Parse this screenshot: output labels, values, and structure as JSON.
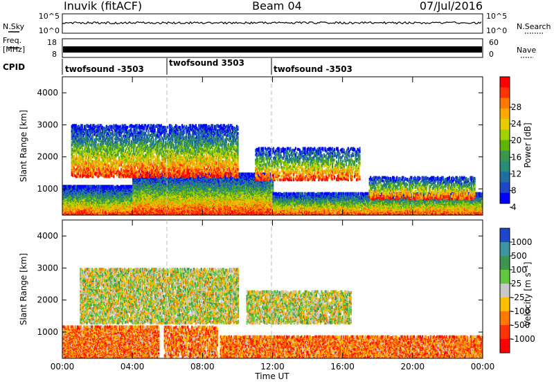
{
  "header": {
    "station": "Inuvik (fitACF)",
    "beam": "Beam 04",
    "date": "07/Jul/2016"
  },
  "strips": {
    "nsky_label": "N.Sky",
    "nsky_ticks": [
      "10^5",
      "10^0"
    ],
    "nsearch_label": "N.Search",
    "nsearch_ticks": [
      "10^5",
      "10^0"
    ],
    "freq_label_line1": "Freq.",
    "freq_label_line2": "[MHz]",
    "freq_ticks": [
      "18",
      "8"
    ],
    "nave_label": "Nave",
    "nave_ticks": [
      "60",
      "0"
    ],
    "cpid_label": "CPID",
    "cpid_segments": [
      {
        "name": "twofsound -3503",
        "start_hour": 0
      },
      {
        "name": "twofsound 3503",
        "start_hour": 6
      },
      {
        "name": "twofsound -3503",
        "start_hour": 12
      }
    ]
  },
  "chart_data": [
    {
      "type": "heatmap",
      "panel": "power",
      "ylabel": "Slant Range [km]",
      "xlim_hours": [
        0,
        24
      ],
      "ylim": [
        180,
        4500
      ],
      "yticks": [
        "1000",
        "2000",
        "3000",
        "4000"
      ],
      "colorbar": {
        "title": "Power [dB]",
        "ticks": [
          "28",
          "24",
          "20",
          "16",
          "12",
          "8",
          "4"
        ],
        "colors": [
          "#ff0000",
          "#ff3200",
          "#ff7800",
          "#ffaa00",
          "#e6cd00",
          "#a0d200",
          "#5fb400",
          "#3c9650",
          "#288c78",
          "#1e6ea0",
          "#1e46c8",
          "#0000ff"
        ]
      },
      "bands": [
        {
          "t0": 0.0,
          "t1": 5.6,
          "r0": 200,
          "r1": 1100,
          "level": 0.85
        },
        {
          "t0": 4.0,
          "t1": 12.0,
          "r0": 250,
          "r1": 1500,
          "level": 0.95
        },
        {
          "t0": 12.0,
          "t1": 24.0,
          "r0": 200,
          "r1": 900,
          "level": 0.8
        },
        {
          "t0": 0.5,
          "t1": 10.0,
          "r0": 1400,
          "r1": 3000,
          "level": 0.45
        },
        {
          "t0": 11.0,
          "t1": 17.0,
          "r0": 1300,
          "r1": 2300,
          "level": 0.35
        },
        {
          "t0": 17.5,
          "t1": 23.5,
          "r0": 700,
          "r1": 1400,
          "level": 0.4
        }
      ]
    },
    {
      "type": "heatmap",
      "panel": "velocity",
      "ylabel": "Slant Range [km]",
      "xlabel": "Time UT",
      "xlim_hours": [
        0,
        24
      ],
      "ylim": [
        180,
        4500
      ],
      "xticks": [
        "00:00",
        "04:00",
        "08:00",
        "12:00",
        "16:00",
        "20:00",
        "00:00"
      ],
      "yticks": [
        "1000",
        "2000",
        "3000",
        "4000"
      ],
      "colorbar": {
        "title": "Velocity [m s⁻¹]",
        "ticks": [
          "1000",
          "500",
          "100",
          "25",
          "-25",
          "-100",
          "-500",
          "-1000"
        ],
        "colors": [
          "#1e46c8",
          "#3c96a0",
          "#3c9650",
          "#5fc83c",
          "#c8c8c8",
          "#ffbe00",
          "#ff7800",
          "#ff3200",
          "#ff0000"
        ]
      },
      "bands": [
        {
          "t0": 0.0,
          "t1": 5.5,
          "r0": 200,
          "r1": 1200,
          "level": 0.85
        },
        {
          "t0": 5.8,
          "t1": 8.8,
          "r0": 250,
          "r1": 1200,
          "level": 0.5
        },
        {
          "t0": 9.0,
          "t1": 24.0,
          "r0": 200,
          "r1": 900,
          "level": 0.7
        },
        {
          "t0": 1.0,
          "t1": 10.0,
          "r0": 1300,
          "r1": 3000,
          "level": 0.5
        },
        {
          "t0": 10.5,
          "t1": 16.5,
          "r0": 1300,
          "r1": 2300,
          "level": 0.5
        }
      ]
    }
  ]
}
